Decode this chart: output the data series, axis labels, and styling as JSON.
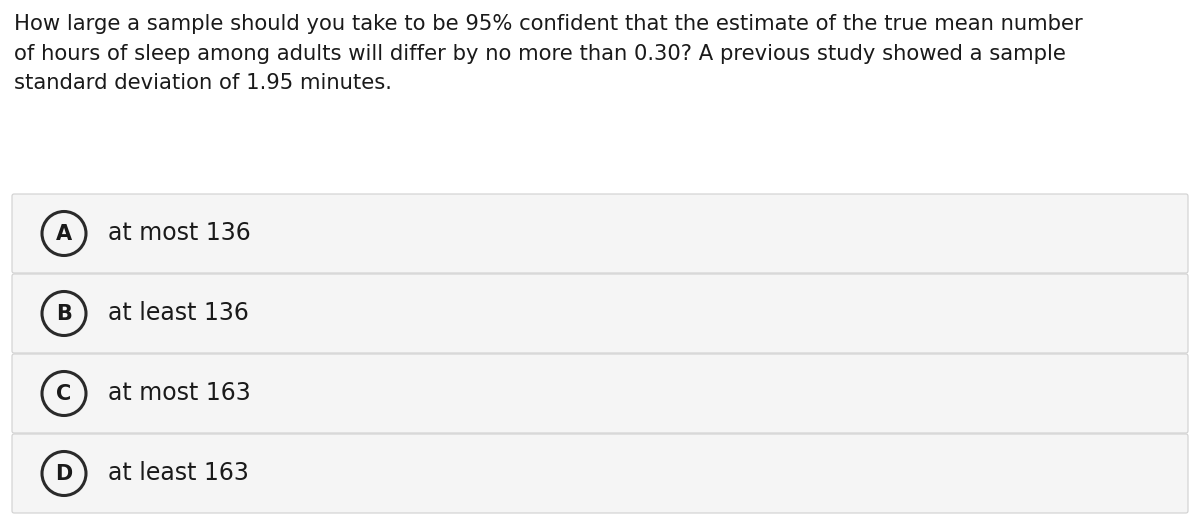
{
  "question_text": "How large a sample should you take to be 95% confident that the estimate of the true mean number\nof hours of sleep among adults will differ by no more than 0.30? A previous study showed a sample\nstandard deviation of 1.95 minutes.",
  "options": [
    {
      "label": "A",
      "text": "at most 136"
    },
    {
      "label": "B",
      "text": "at least 136"
    },
    {
      "label": "C",
      "text": "at most 163"
    },
    {
      "label": "D",
      "text": "at least 163"
    }
  ],
  "background_color": "#ffffff",
  "option_bg_color": "#f5f5f5",
  "option_border_color": "#d0d0d0",
  "text_color": "#1a1a1a",
  "circle_edge_color": "#2a2a2a",
  "question_fontsize": 15.2,
  "option_fontsize": 17,
  "label_fontsize": 15,
  "fig_width": 12.0,
  "fig_height": 5.16,
  "dpi": 100
}
